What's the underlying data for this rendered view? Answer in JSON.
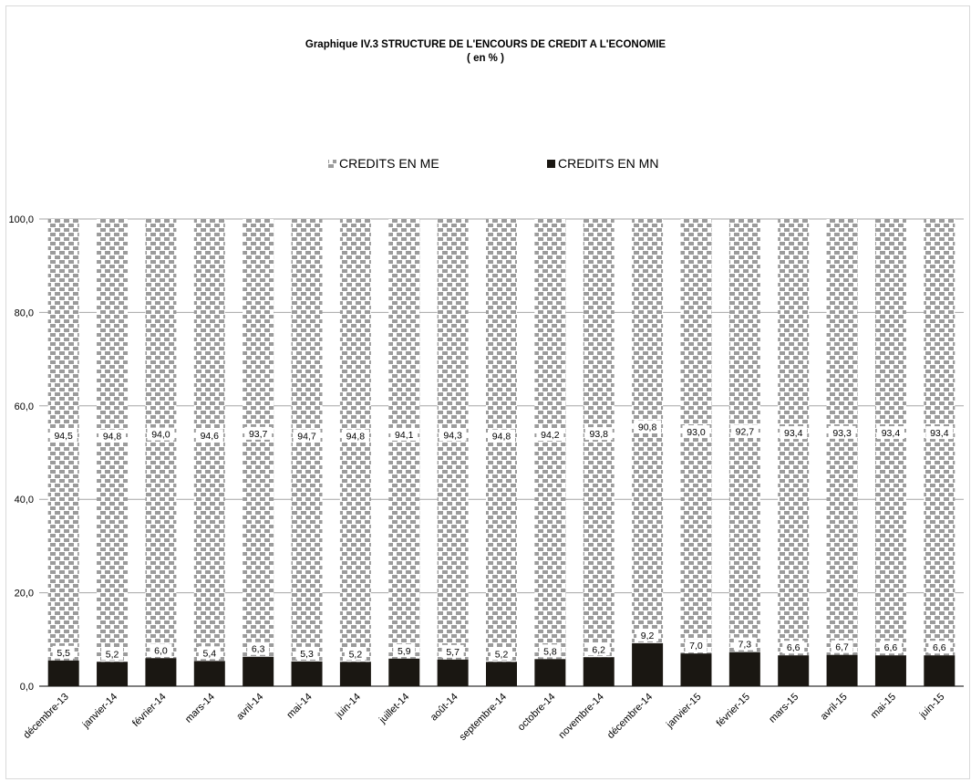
{
  "chart_data": {
    "type": "bar",
    "stacked": true,
    "title": "Graphique IV.3  STRUCTURE DE L'ENCOURS DE CREDIT A L'ECONOMIE",
    "subtitle": "( en % )",
    "categories": [
      "décembre-13",
      "janvier-14",
      "février-14",
      "mars-14",
      "avril-14",
      "mai-14",
      "juin-14",
      "juillet-14",
      "août-14",
      "septembre-14",
      "octobre-14",
      "novembre-14",
      "décembre-14",
      "janvier-15",
      "février-15",
      "mars-15",
      "avril-15",
      "mai-15",
      "juin-15"
    ],
    "series": [
      {
        "name": "CREDITS EN MN",
        "color": "#1a1712",
        "values": [
          5.5,
          5.2,
          6.0,
          5.4,
          6.3,
          5.3,
          5.2,
          5.9,
          5.7,
          5.2,
          5.8,
          6.2,
          9.2,
          7.0,
          7.3,
          6.6,
          6.7,
          6.6,
          6.6
        ]
      },
      {
        "name": "CREDITS EN ME",
        "color": "#9b9b9b",
        "pattern": "checker",
        "values": [
          94.5,
          94.8,
          94.0,
          94.6,
          93.7,
          94.7,
          94.8,
          94.1,
          94.3,
          94.8,
          94.2,
          93.8,
          90.8,
          93.0,
          92.7,
          93.4,
          93.3,
          93.4,
          93.4
        ]
      }
    ],
    "data_labels": {
      "mn": [
        "5,5",
        "5,2",
        "6,0",
        "5,4",
        "6,3",
        "5,3",
        "5,2",
        "5,9",
        "5,7",
        "5,2",
        "5,8",
        "6,2",
        "9,2",
        "7,0",
        "7,3",
        "6,6",
        "6,7",
        "6,6",
        "6,6"
      ],
      "me": [
        "94,5",
        "94,8",
        "94,0",
        "94,6",
        "93,7",
        "94,7",
        "94,8",
        "94,1",
        "94,3",
        "94,8",
        "94,2",
        "93,8",
        "90,8",
        "93,0",
        "92,7",
        "93,4",
        "93,3",
        "93,4",
        "93,4"
      ]
    },
    "ylim": [
      0,
      100
    ],
    "yticks": [
      "0,0",
      "20,0",
      "40,0",
      "60,0",
      "80,0",
      "100,0"
    ],
    "ytick_values": [
      0,
      20,
      40,
      60,
      80,
      100
    ],
    "legend": {
      "position": "top",
      "order": [
        "CREDITS EN ME",
        "CREDITS EN MN"
      ]
    },
    "grid": true
  }
}
